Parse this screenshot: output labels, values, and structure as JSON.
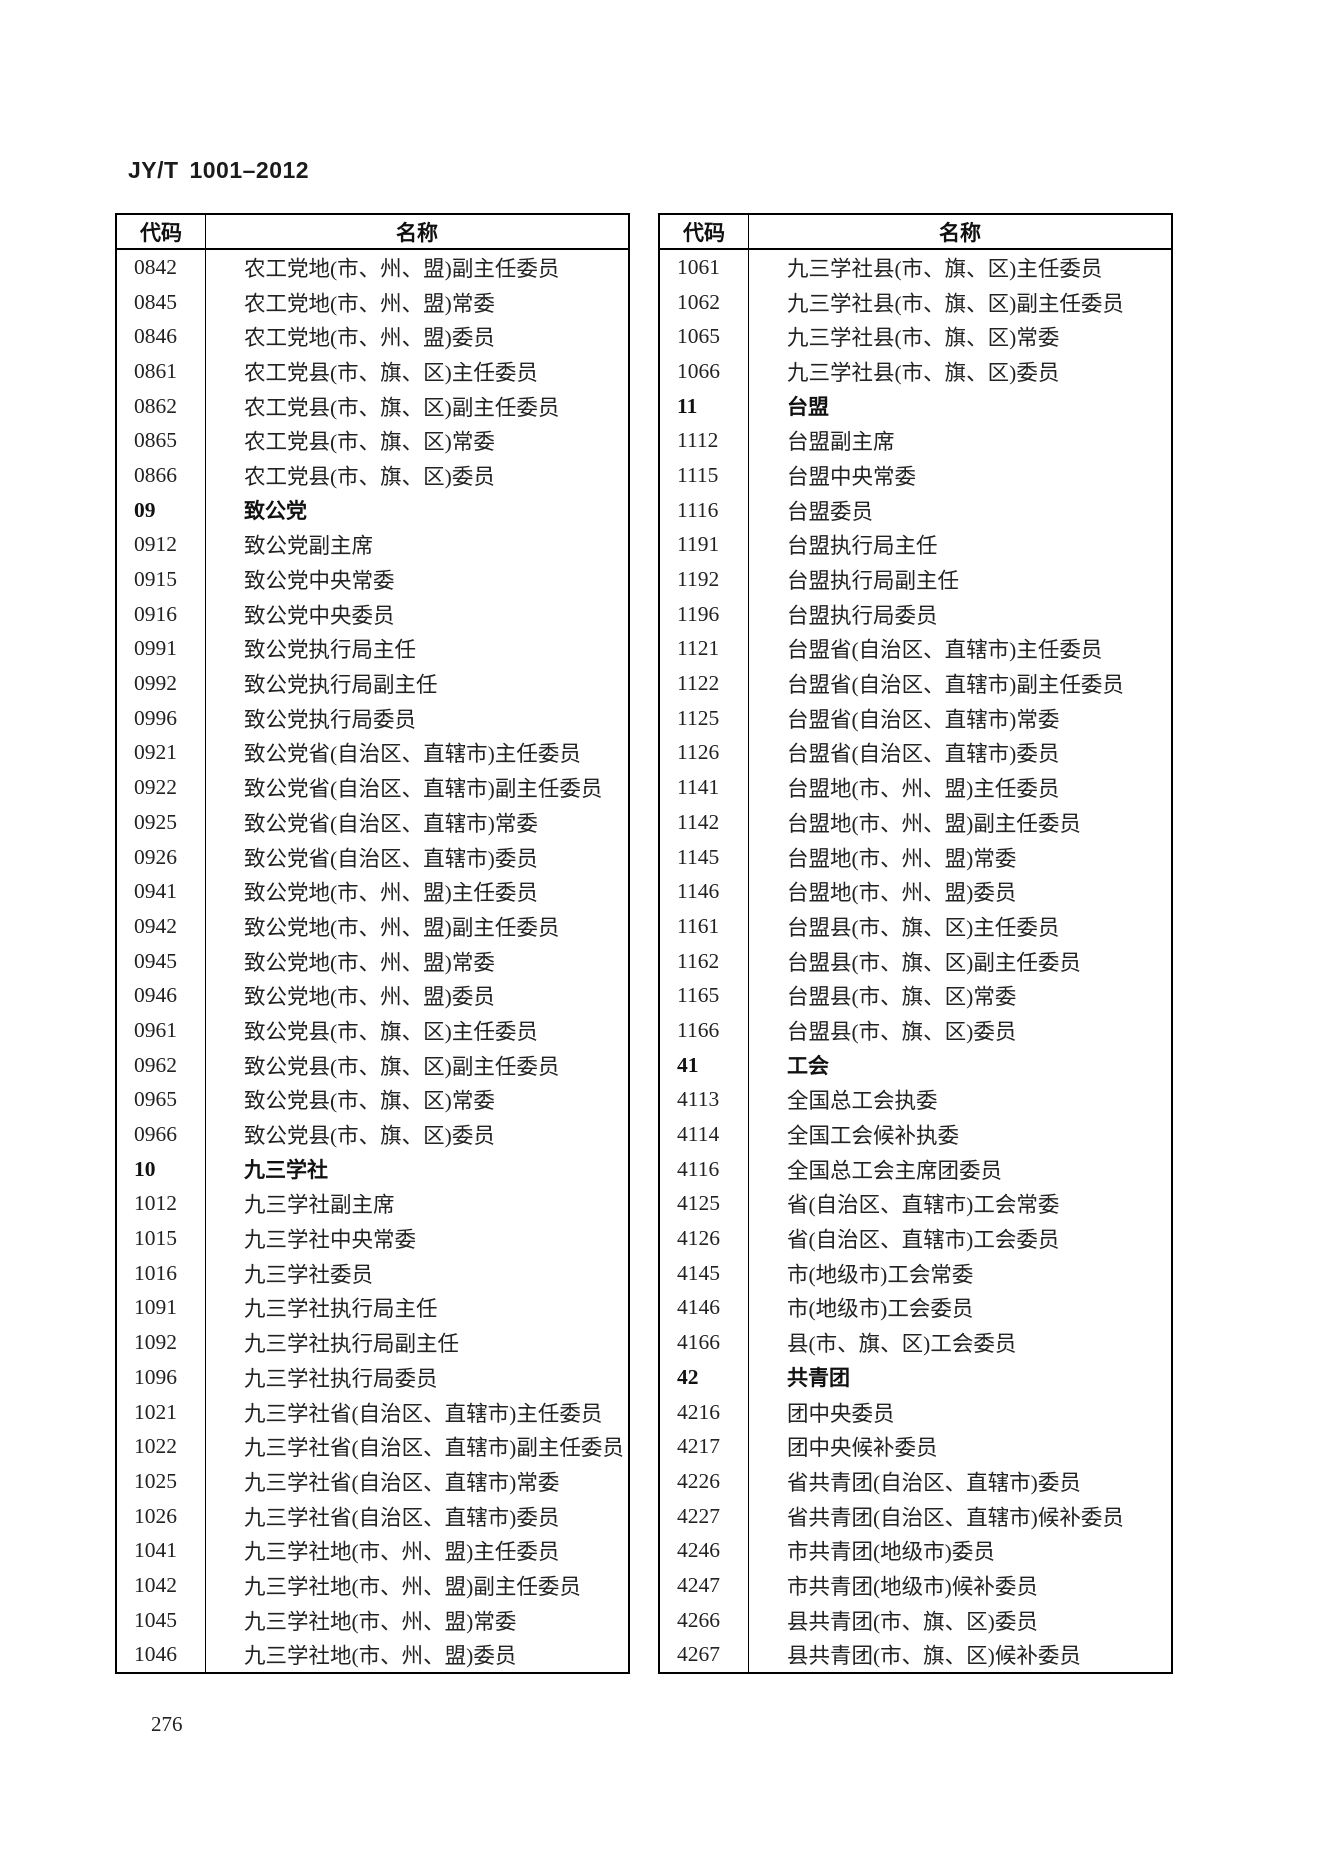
{
  "page": {
    "header_title": "JY/T 1001–2012",
    "page_number": "276"
  },
  "tables": [
    {
      "columns": [
        "代码",
        "名称"
      ],
      "rows": [
        {
          "code": "0842",
          "name": "农工党地(市、州、盟)副主任委员"
        },
        {
          "code": "0845",
          "name": "农工党地(市、州、盟)常委"
        },
        {
          "code": "0846",
          "name": "农工党地(市、州、盟)委员"
        },
        {
          "code": "0861",
          "name": "农工党县(市、旗、区)主任委员"
        },
        {
          "code": "0862",
          "name": "农工党县(市、旗、区)副主任委员"
        },
        {
          "code": "0865",
          "name": "农工党县(市、旗、区)常委"
        },
        {
          "code": "0866",
          "name": "农工党县(市、旗、区)委员"
        },
        {
          "code": "09",
          "name": "致公党",
          "section": true
        },
        {
          "code": "0912",
          "name": "致公党副主席"
        },
        {
          "code": "0915",
          "name": "致公党中央常委"
        },
        {
          "code": "0916",
          "name": "致公党中央委员"
        },
        {
          "code": "0991",
          "name": "致公党执行局主任"
        },
        {
          "code": "0992",
          "name": "致公党执行局副主任"
        },
        {
          "code": "0996",
          "name": "致公党执行局委员"
        },
        {
          "code": "0921",
          "name": "致公党省(自治区、直辖市)主任委员"
        },
        {
          "code": "0922",
          "name": "致公党省(自治区、直辖市)副主任委员"
        },
        {
          "code": "0925",
          "name": "致公党省(自治区、直辖市)常委"
        },
        {
          "code": "0926",
          "name": "致公党省(自治区、直辖市)委员"
        },
        {
          "code": "0941",
          "name": "致公党地(市、州、盟)主任委员"
        },
        {
          "code": "0942",
          "name": "致公党地(市、州、盟)副主任委员"
        },
        {
          "code": "0945",
          "name": "致公党地(市、州、盟)常委"
        },
        {
          "code": "0946",
          "name": "致公党地(市、州、盟)委员"
        },
        {
          "code": "0961",
          "name": "致公党县(市、旗、区)主任委员"
        },
        {
          "code": "0962",
          "name": "致公党县(市、旗、区)副主任委员"
        },
        {
          "code": "0965",
          "name": "致公党县(市、旗、区)常委"
        },
        {
          "code": "0966",
          "name": "致公党县(市、旗、区)委员"
        },
        {
          "code": "10",
          "name": "九三学社",
          "section": true
        },
        {
          "code": "1012",
          "name": "九三学社副主席"
        },
        {
          "code": "1015",
          "name": "九三学社中央常委"
        },
        {
          "code": "1016",
          "name": "九三学社委员"
        },
        {
          "code": "1091",
          "name": "九三学社执行局主任"
        },
        {
          "code": "1092",
          "name": "九三学社执行局副主任"
        },
        {
          "code": "1096",
          "name": "九三学社执行局委员"
        },
        {
          "code": "1021",
          "name": "九三学社省(自治区、直辖市)主任委员"
        },
        {
          "code": "1022",
          "name": "九三学社省(自治区、直辖市)副主任委员"
        },
        {
          "code": "1025",
          "name": "九三学社省(自治区、直辖市)常委"
        },
        {
          "code": "1026",
          "name": "九三学社省(自治区、直辖市)委员"
        },
        {
          "code": "1041",
          "name": "九三学社地(市、州、盟)主任委员"
        },
        {
          "code": "1042",
          "name": "九三学社地(市、州、盟)副主任委员"
        },
        {
          "code": "1045",
          "name": "九三学社地(市、州、盟)常委"
        },
        {
          "code": "1046",
          "name": "九三学社地(市、州、盟)委员"
        }
      ]
    },
    {
      "columns": [
        "代码",
        "名称"
      ],
      "rows": [
        {
          "code": "1061",
          "name": "九三学社县(市、旗、区)主任委员"
        },
        {
          "code": "1062",
          "name": "九三学社县(市、旗、区)副主任委员"
        },
        {
          "code": "1065",
          "name": "九三学社县(市、旗、区)常委"
        },
        {
          "code": "1066",
          "name": "九三学社县(市、旗、区)委员"
        },
        {
          "code": "11",
          "name": "台盟",
          "section": true
        },
        {
          "code": "1112",
          "name": "台盟副主席"
        },
        {
          "code": "1115",
          "name": "台盟中央常委"
        },
        {
          "code": "1116",
          "name": "台盟委员"
        },
        {
          "code": "1191",
          "name": "台盟执行局主任"
        },
        {
          "code": "1192",
          "name": "台盟执行局副主任"
        },
        {
          "code": "1196",
          "name": "台盟执行局委员"
        },
        {
          "code": "1121",
          "name": "台盟省(自治区、直辖市)主任委员"
        },
        {
          "code": "1122",
          "name": "台盟省(自治区、直辖市)副主任委员"
        },
        {
          "code": "1125",
          "name": "台盟省(自治区、直辖市)常委"
        },
        {
          "code": "1126",
          "name": "台盟省(自治区、直辖市)委员"
        },
        {
          "code": "1141",
          "name": "台盟地(市、州、盟)主任委员"
        },
        {
          "code": "1142",
          "name": "台盟地(市、州、盟)副主任委员"
        },
        {
          "code": "1145",
          "name": "台盟地(市、州、盟)常委"
        },
        {
          "code": "1146",
          "name": "台盟地(市、州、盟)委员"
        },
        {
          "code": "1161",
          "name": "台盟县(市、旗、区)主任委员"
        },
        {
          "code": "1162",
          "name": "台盟县(市、旗、区)副主任委员"
        },
        {
          "code": "1165",
          "name": "台盟县(市、旗、区)常委"
        },
        {
          "code": "1166",
          "name": "台盟县(市、旗、区)委员"
        },
        {
          "code": "41",
          "name": "工会",
          "section": true
        },
        {
          "code": "4113",
          "name": "全国总工会执委"
        },
        {
          "code": "4114",
          "name": "全国工会候补执委"
        },
        {
          "code": "4116",
          "name": "全国总工会主席团委员"
        },
        {
          "code": "4125",
          "name": "省(自治区、直辖市)工会常委"
        },
        {
          "code": "4126",
          "name": "省(自治区、直辖市)工会委员"
        },
        {
          "code": "4145",
          "name": "市(地级市)工会常委"
        },
        {
          "code": "4146",
          "name": "市(地级市)工会委员"
        },
        {
          "code": "4166",
          "name": "县(市、旗、区)工会委员"
        },
        {
          "code": "42",
          "name": "共青团",
          "section": true
        },
        {
          "code": "4216",
          "name": "团中央委员"
        },
        {
          "code": "4217",
          "name": "团中央候补委员"
        },
        {
          "code": "4226",
          "name": "省共青团(自治区、直辖市)委员"
        },
        {
          "code": "4227",
          "name": "省共青团(自治区、直辖市)候补委员"
        },
        {
          "code": "4246",
          "name": "市共青团(地级市)委员"
        },
        {
          "code": "4247",
          "name": "市共青团(地级市)候补委员"
        },
        {
          "code": "4266",
          "name": "县共青团(市、旗、区)委员"
        },
        {
          "code": "4267",
          "name": "县共青团(市、旗、区)候补委员"
        }
      ]
    }
  ]
}
